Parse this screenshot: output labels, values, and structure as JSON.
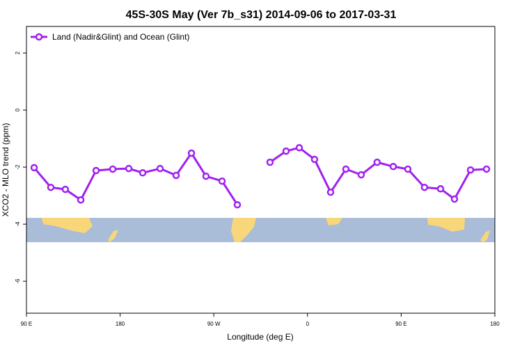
{
  "chart_data": {
    "type": "line",
    "title": "45S-30S May (Ver 7b_s31)   2014-09-06 to 2017-03-31",
    "x_label": "Longitude (deg E)",
    "y_label": "XCO2 - MLO trend (ppm)",
    "xlim": [
      90,
      540
    ],
    "xticks": [
      {
        "value": 90,
        "label": "90 E"
      },
      {
        "value": 180,
        "label": "180"
      },
      {
        "value": 270,
        "label": "90 W"
      },
      {
        "value": 360,
        "label": "0"
      },
      {
        "value": 450,
        "label": "90 E"
      },
      {
        "value": 540,
        "label": "180"
      }
    ],
    "ylim": [
      -7.12,
      2.93
    ],
    "yticks": [
      2,
      0,
      -2,
      -4,
      -6
    ],
    "legend_position": "top-left",
    "x": [
      97.4,
      113.4,
      127.4,
      142.2,
      156.9,
      172.9,
      188.3,
      201.7,
      218.4,
      233.8,
      248.5,
      262.5,
      277.9,
      292.6,
      308,
      324.0,
      339.4,
      352.1,
      366.8,
      382.2,
      396.9,
      411.6,
      426.9,
      442.4,
      456.4,
      472.4,
      487.8,
      501.2,
      516.6,
      532.0
    ],
    "series": [
      {
        "name": "Land (Nadir&Glint) and Ocean (Glint)",
        "color": "#a020f0",
        "values": [
          -2.02,
          -2.71,
          -2.78,
          -3.15,
          -2.12,
          -2.07,
          -2.05,
          -2.2,
          -2.05,
          -2.29,
          -1.51,
          -2.32,
          -2.49,
          -3.32,
          null,
          -1.83,
          -1.44,
          -1.32,
          -1.73,
          -2.88,
          -2.07,
          -2.27,
          -1.83,
          -1.98,
          -2.07,
          -2.71,
          -2.76,
          -3.12,
          -2.1,
          -2.07
        ]
      }
    ]
  }
}
